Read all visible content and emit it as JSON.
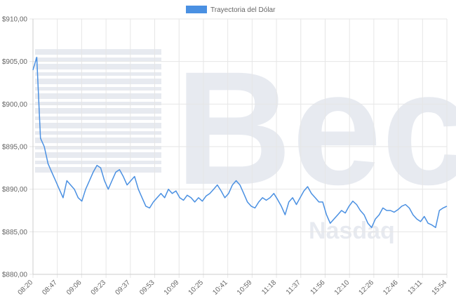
{
  "watermark": {
    "text": "Bec",
    "sub_text": "Nasdaq"
  },
  "chart_data": {
    "type": "line",
    "title": "",
    "xlabel": "",
    "ylabel": "",
    "legend_position": "top-center",
    "grid": true,
    "ylim": [
      880,
      910
    ],
    "y_ticks": [
      "$880,00",
      "$885,00",
      "$890,00",
      "$895,00",
      "$900,00",
      "$905,00",
      "$910,00"
    ],
    "x_ticks": [
      "08:20",
      "08:47",
      "09:06",
      "09:23",
      "09:37",
      "09:53",
      "10:09",
      "10:25",
      "10:41",
      "10:59",
      "11:18",
      "11:37",
      "11:56",
      "12:10",
      "12:26",
      "12:46",
      "13:11",
      "15:54"
    ],
    "series": [
      {
        "name": "Trayectoria del Dólar",
        "color": "#4a90e2",
        "values": [
          904,
          905.5,
          896,
          895,
          893,
          892,
          891,
          890,
          889,
          891,
          890.5,
          890,
          889,
          888.6,
          890,
          891,
          892,
          892.8,
          892.5,
          891,
          890,
          891,
          892,
          892.3,
          891.5,
          890.5,
          891,
          891.5,
          890,
          889,
          888,
          887.8,
          888.5,
          889,
          889.5,
          889,
          890,
          889.5,
          889.8,
          889,
          888.7,
          889.3,
          889,
          888.5,
          889,
          888.6,
          889.2,
          889.5,
          890,
          890.5,
          889.8,
          889,
          889.5,
          890.5,
          891,
          890.5,
          889.5,
          888.5,
          888,
          887.8,
          888.5,
          889,
          888.7,
          889,
          889.5,
          888.8,
          888,
          887,
          888.5,
          889,
          888.2,
          889,
          889.8,
          890.3,
          889.5,
          889,
          888.5,
          888.5,
          887,
          886,
          886.5,
          887,
          887.5,
          887.2,
          888,
          888.6,
          888.2,
          887.5,
          887,
          886,
          885.5,
          886.5,
          887,
          887.8,
          887.5,
          887.5,
          887.3,
          887.6,
          888,
          888.2,
          887.8,
          887,
          886.5,
          886.2,
          886.8,
          886,
          885.8,
          885.5,
          887.5,
          887.8,
          888
        ]
      }
    ]
  }
}
